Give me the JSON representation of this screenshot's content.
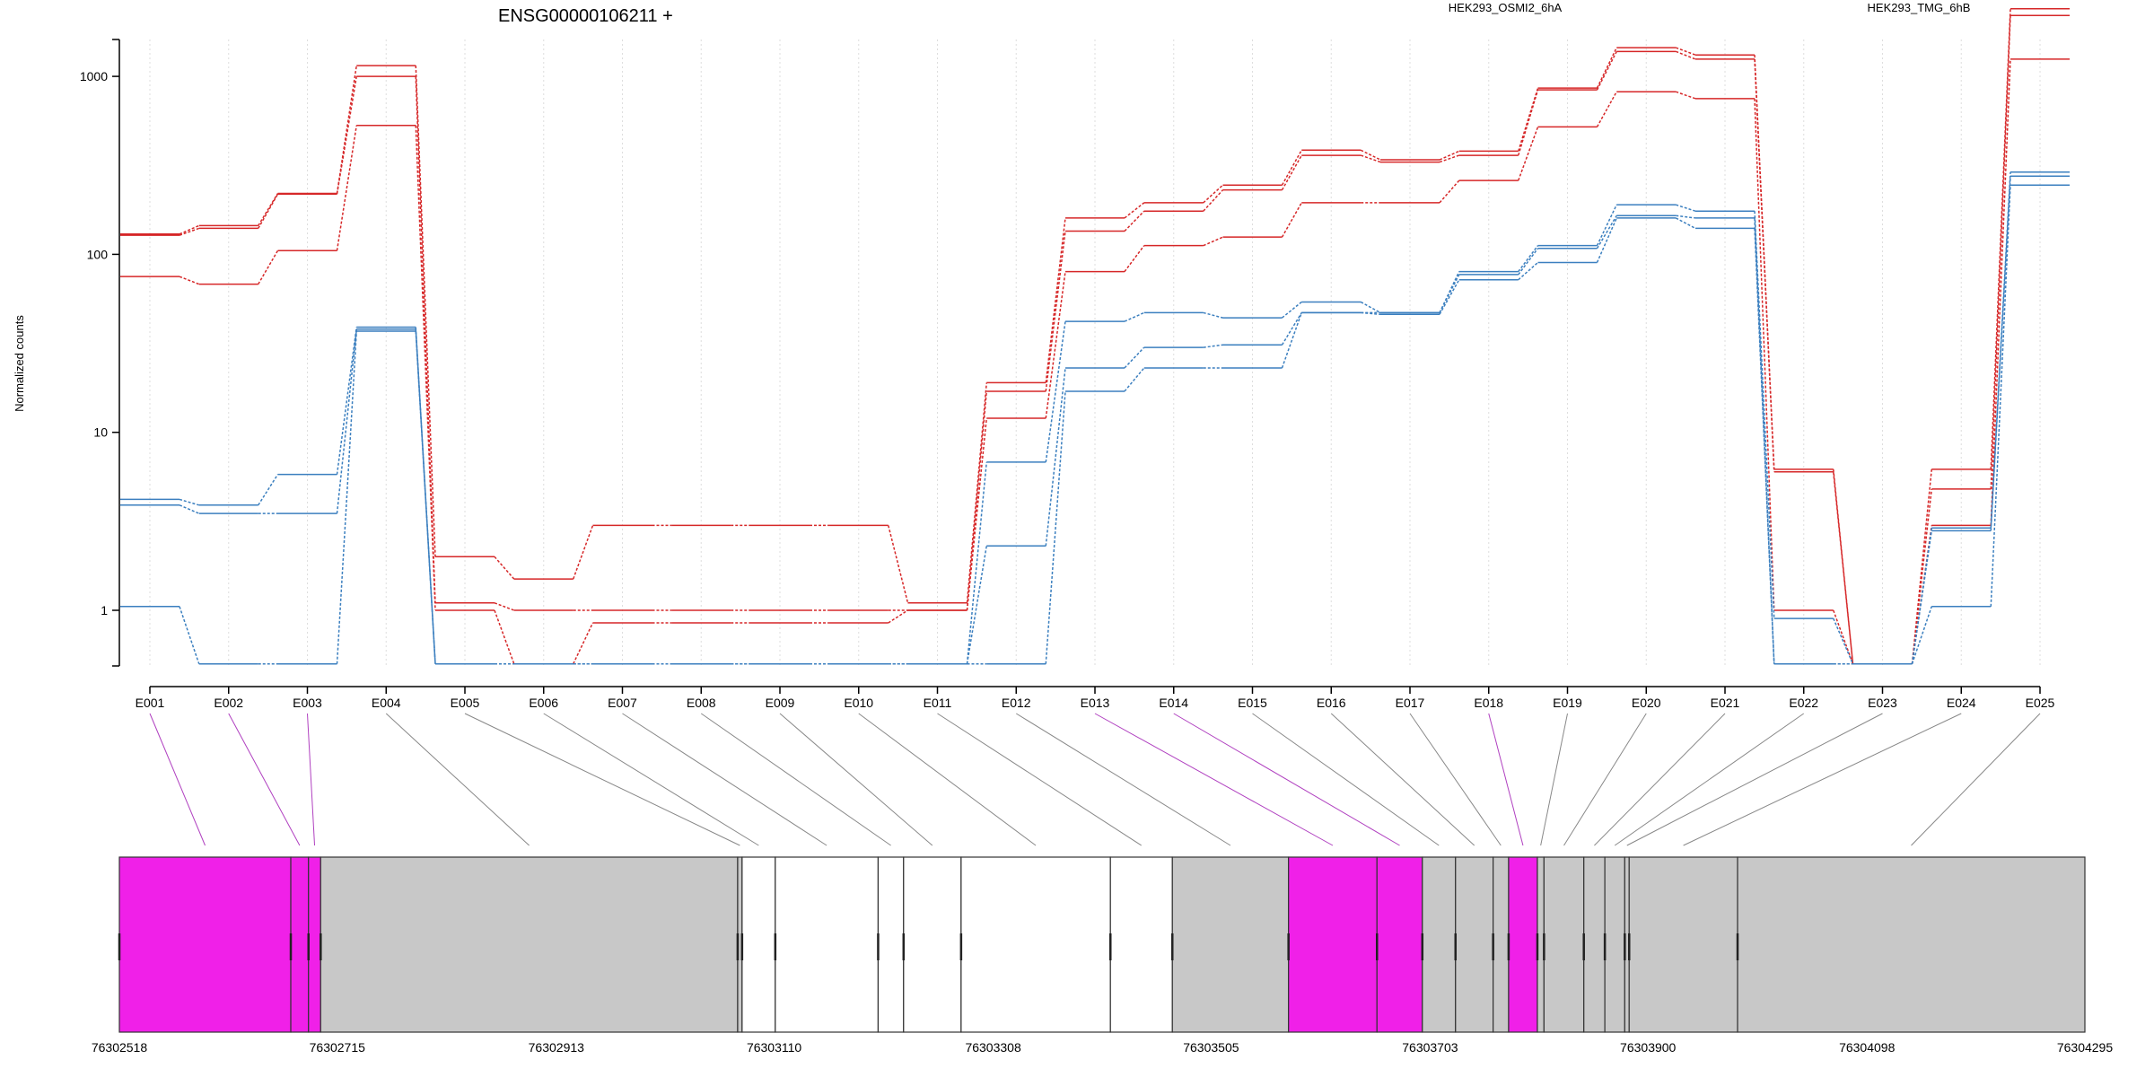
{
  "chart_data": {
    "type": "line",
    "title": "ENSG00000106211 +",
    "ylabel": "Normalized counts",
    "xlabel": "",
    "yscale": "log",
    "yticks": [
      1,
      10,
      100,
      1000
    ],
    "ytick_labels": [
      "1",
      "10",
      "100",
      "1000"
    ],
    "grid": "vertical dotted",
    "legend_position": "top",
    "conditions": [
      {
        "name": "HEK293_OSMI2_6hA",
        "color": "#d62728"
      },
      {
        "name": "HEK293_TMG_6hB",
        "color": "#3b7fbf"
      }
    ],
    "categories": [
      "E001",
      "E002",
      "E003",
      "E004",
      "E005",
      "E006",
      "E007",
      "E008",
      "E009",
      "E010",
      "E011",
      "E012",
      "E013",
      "E014",
      "E015",
      "E016",
      "E017",
      "E018",
      "E019",
      "E020",
      "E021",
      "E022",
      "E023",
      "E024",
      "E025"
    ],
    "series": [
      {
        "condition": "HEK293_OSMI2_6hA",
        "color": "#d62728",
        "values": [
          130,
          145,
          220,
          1150,
          2.0,
          1.5,
          3.0,
          3.0,
          3.0,
          3.0,
          1.1,
          19,
          160,
          195,
          245,
          385,
          340,
          380,
          860,
          1450,
          1320,
          6.2,
          0.5,
          6.2,
          2400
        ]
      },
      {
        "condition": "HEK293_OSMI2_6hA",
        "color": "#d62728",
        "values": [
          128,
          140,
          218,
          1000,
          1.1,
          1.0,
          1.0,
          1.0,
          1.0,
          1.0,
          1.0,
          17,
          135,
          175,
          230,
          360,
          330,
          360,
          840,
          1380,
          1250,
          6.0,
          0.5,
          4.8,
          2200
        ]
      },
      {
        "condition": "HEK293_OSMI2_6hA",
        "color": "#d62728",
        "values": [
          75,
          68,
          105,
          530,
          1.0,
          0.5,
          0.85,
          0.85,
          0.85,
          0.85,
          1.0,
          12,
          80,
          112,
          125,
          195,
          195,
          260,
          520,
          820,
          750,
          1.0,
          0.5,
          3.0,
          1250
        ]
      },
      {
        "condition": "HEK293_TMG_6hB",
        "color": "#3b7fbf",
        "values": [
          4.2,
          3.9,
          5.8,
          39,
          0.5,
          0.5,
          0.5,
          0.5,
          0.5,
          0.5,
          0.5,
          6.8,
          42,
          47,
          44,
          54,
          47,
          80,
          112,
          190,
          175,
          0.9,
          0.5,
          2.9,
          290
        ]
      },
      {
        "condition": "HEK293_TMG_6hB",
        "color": "#3b7fbf",
        "values": [
          3.9,
          3.5,
          3.5,
          38,
          0.5,
          0.5,
          0.5,
          0.5,
          0.5,
          0.5,
          0.5,
          2.3,
          23,
          30,
          31,
          47,
          47,
          77,
          108,
          165,
          160,
          0.5,
          0.5,
          2.8,
          275
        ]
      },
      {
        "condition": "HEK293_TMG_6hB",
        "color": "#3b7fbf",
        "values": [
          1.05,
          0.5,
          0.5,
          37,
          0.5,
          0.5,
          0.5,
          0.5,
          0.5,
          0.5,
          0.5,
          0.5,
          17,
          23,
          23,
          47,
          46,
          72,
          90,
          160,
          140,
          0.5,
          0.5,
          1.05,
          245
        ]
      }
    ],
    "gene_model": {
      "coord_start": 76302518,
      "coord_end": 76304295,
      "coord_tick_labels": [
        "76302518",
        "76302715",
        "76302913",
        "76303110",
        "76303308",
        "76303505",
        "76303703",
        "76303900",
        "76304098",
        "76304295"
      ],
      "fill_colors": {
        "magenta": "#f020e8",
        "grey": "#c8c8c8",
        "white": "#ffffff"
      },
      "segments": [
        {
          "exon": "E001",
          "fill": "magenta",
          "start": 76302518,
          "end": 76302673
        },
        {
          "exon": "E002",
          "fill": "magenta",
          "start": 76302673,
          "end": 76302689
        },
        {
          "exon": "E003",
          "fill": "magenta",
          "start": 76302689,
          "end": 76302700
        },
        {
          "exon": "E004",
          "fill": "grey",
          "start": 76302700,
          "end": 76303077
        },
        {
          "exon": "E005",
          "fill": "grey",
          "start": 76303077,
          "end": 76303081
        },
        {
          "exon": "E006",
          "fill": "white",
          "start": 76303081,
          "end": 76303111
        },
        {
          "exon": "E007",
          "fill": "white",
          "start": 76303111,
          "end": 76303204
        },
        {
          "exon": "E008",
          "fill": "white",
          "start": 76303204,
          "end": 76303227
        },
        {
          "exon": "E009",
          "fill": "white",
          "start": 76303227,
          "end": 76303279
        },
        {
          "exon": "E010",
          "fill": "white",
          "start": 76303279,
          "end": 76303414
        },
        {
          "exon": "E011",
          "fill": "white",
          "start": 76303414,
          "end": 76303470
        },
        {
          "exon": "E012",
          "fill": "grey",
          "start": 76303470,
          "end": 76303575
        },
        {
          "exon": "E013",
          "fill": "magenta",
          "start": 76303575,
          "end": 76303655
        },
        {
          "exon": "E014",
          "fill": "magenta",
          "start": 76303655,
          "end": 76303696
        },
        {
          "exon": "E015",
          "fill": "grey",
          "start": 76303696,
          "end": 76303726
        },
        {
          "exon": "E016",
          "fill": "grey",
          "start": 76303726,
          "end": 76303760
        },
        {
          "exon": "E017",
          "fill": "grey",
          "start": 76303760,
          "end": 76303774
        },
        {
          "exon": "E018",
          "fill": "magenta",
          "start": 76303774,
          "end": 76303800
        },
        {
          "exon": "E019",
          "fill": "grey",
          "start": 76303800,
          "end": 76303806
        },
        {
          "exon": "E020",
          "fill": "grey",
          "start": 76303806,
          "end": 76303842
        },
        {
          "exon": "E021",
          "fill": "grey",
          "start": 76303842,
          "end": 76303861
        },
        {
          "exon": "E022",
          "fill": "grey",
          "start": 76303861,
          "end": 76303879
        },
        {
          "exon": "E023",
          "fill": "grey",
          "start": 76303879,
          "end": 76303883
        },
        {
          "exon": "E024",
          "fill": "grey",
          "start": 76303883,
          "end": 76303981
        },
        {
          "exon": "E025",
          "fill": "grey",
          "start": 76303981,
          "end": 76304295
        }
      ]
    }
  }
}
